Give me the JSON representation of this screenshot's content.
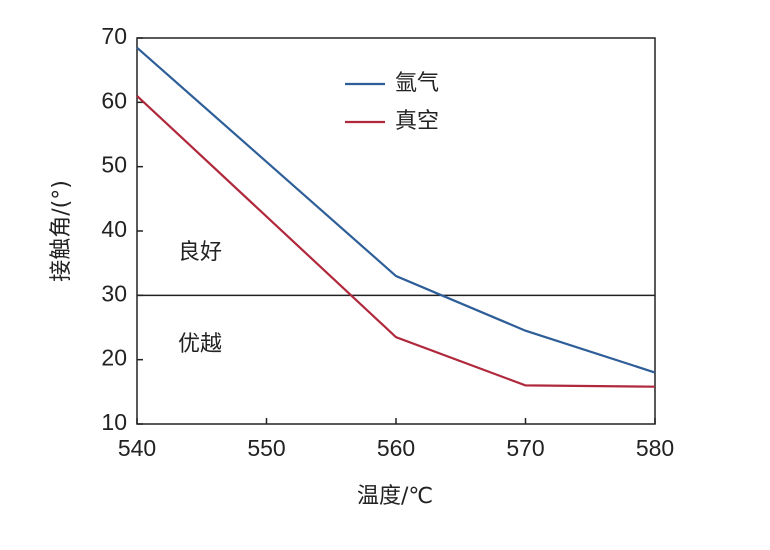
{
  "chart_data": {
    "type": "line",
    "x_label": "温度/℃",
    "y_label": "接触角/(°)",
    "x": [
      540,
      560,
      570,
      580
    ],
    "series": [
      {
        "name": "氩气",
        "color": "#2e5e98",
        "values": [
          68.5,
          33,
          24.5,
          18
        ]
      },
      {
        "name": "真空",
        "color": "#b0283c",
        "values": [
          61,
          23.5,
          16,
          15.8
        ]
      }
    ],
    "xlim": [
      540,
      580
    ],
    "xticks": [
      540,
      550,
      560,
      570,
      580
    ],
    "ylim": [
      10,
      70
    ],
    "yticks": [
      10,
      20,
      30,
      40,
      50,
      60,
      70
    ],
    "reference_line": 30,
    "annotations": [
      "良好",
      "优越"
    ]
  }
}
